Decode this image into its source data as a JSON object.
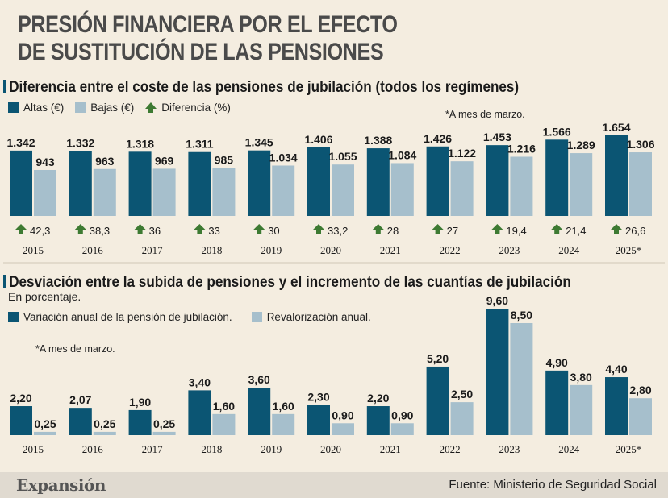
{
  "title_line1": "PRESIÓN FINANCIERA POR EL EFECTO",
  "title_line2": "DE SUSTITUCIÓN DE LAS PENSIONES",
  "source": "Fuente: Ministerio de Seguridad Social",
  "brand": "Expansión",
  "colors": {
    "dark": "#0b5573",
    "light": "#a6bfcc",
    "arrow": "#3d7a32",
    "background": "#f4ede0"
  },
  "chart_data": [
    {
      "type": "bar",
      "title": "Diferencia entre el coste de las pensiones de jubilación (todos los regímenes)",
      "note": "*A mes de marzo.",
      "categories": [
        "2015",
        "2016",
        "2017",
        "2018",
        "2019",
        "2020",
        "2021",
        "2022",
        "2023",
        "2024",
        "2025*"
      ],
      "series": [
        {
          "name": "Altas (€)",
          "values": [
            1342,
            1332,
            1318,
            1311,
            1345,
            1406,
            1388,
            1426,
            1453,
            1566,
            1654
          ],
          "labels": [
            "1.342",
            "1.332",
            "1.318",
            "1.311",
            "1.345",
            "1.406",
            "1.388",
            "1.426",
            "1.453",
            "1.566",
            "1.654"
          ]
        },
        {
          "name": "Bajas (€)",
          "values": [
            943,
            963,
            969,
            985,
            1034,
            1055,
            1084,
            1122,
            1216,
            1289,
            1306
          ],
          "labels": [
            "943",
            "963",
            "969",
            "985",
            "1.034",
            "1.055",
            "1.084",
            "1.122",
            "1.216",
            "1.289",
            "1.306"
          ]
        },
        {
          "name": "Diferencia (%)",
          "values": [
            42.3,
            38.3,
            36,
            33,
            30,
            33.2,
            28,
            27,
            19.4,
            21.4,
            26.6
          ],
          "labels": [
            "42,3",
            "38,3",
            "36",
            "33",
            "30",
            "33,2",
            "28",
            "27",
            "19,4",
            "21,4",
            "26,6"
          ]
        }
      ]
    },
    {
      "type": "bar",
      "title": "Desviación entre la subida de pensiones y el incremento de las cuantías de jubilación",
      "subtitle": "En porcentaje.",
      "note": "*A mes de marzo.",
      "categories": [
        "2015",
        "2016",
        "2017",
        "2018",
        "2019",
        "2020",
        "2021",
        "2022",
        "2023",
        "2024",
        "2025*"
      ],
      "series": [
        {
          "name": "Variación anual de la pensión de jubilación.",
          "values": [
            2.2,
            2.07,
            1.9,
            3.4,
            3.6,
            2.3,
            2.2,
            5.2,
            9.6,
            4.9,
            4.4
          ],
          "labels": [
            "2,20",
            "2,07",
            "1,90",
            "3,40",
            "3,60",
            "2,30",
            "2,20",
            "5,20",
            "9,60",
            "4,90",
            "4,40"
          ]
        },
        {
          "name": "Revalorización anual.",
          "values": [
            0.25,
            0.25,
            0.25,
            1.6,
            1.6,
            0.9,
            0.9,
            2.5,
            8.5,
            3.8,
            2.8
          ],
          "labels": [
            "0,25",
            "0,25",
            "0,25",
            "1,60",
            "1,60",
            "0,90",
            "0,90",
            "2,50",
            "8,50",
            "3,80",
            "2,80"
          ]
        }
      ]
    }
  ]
}
